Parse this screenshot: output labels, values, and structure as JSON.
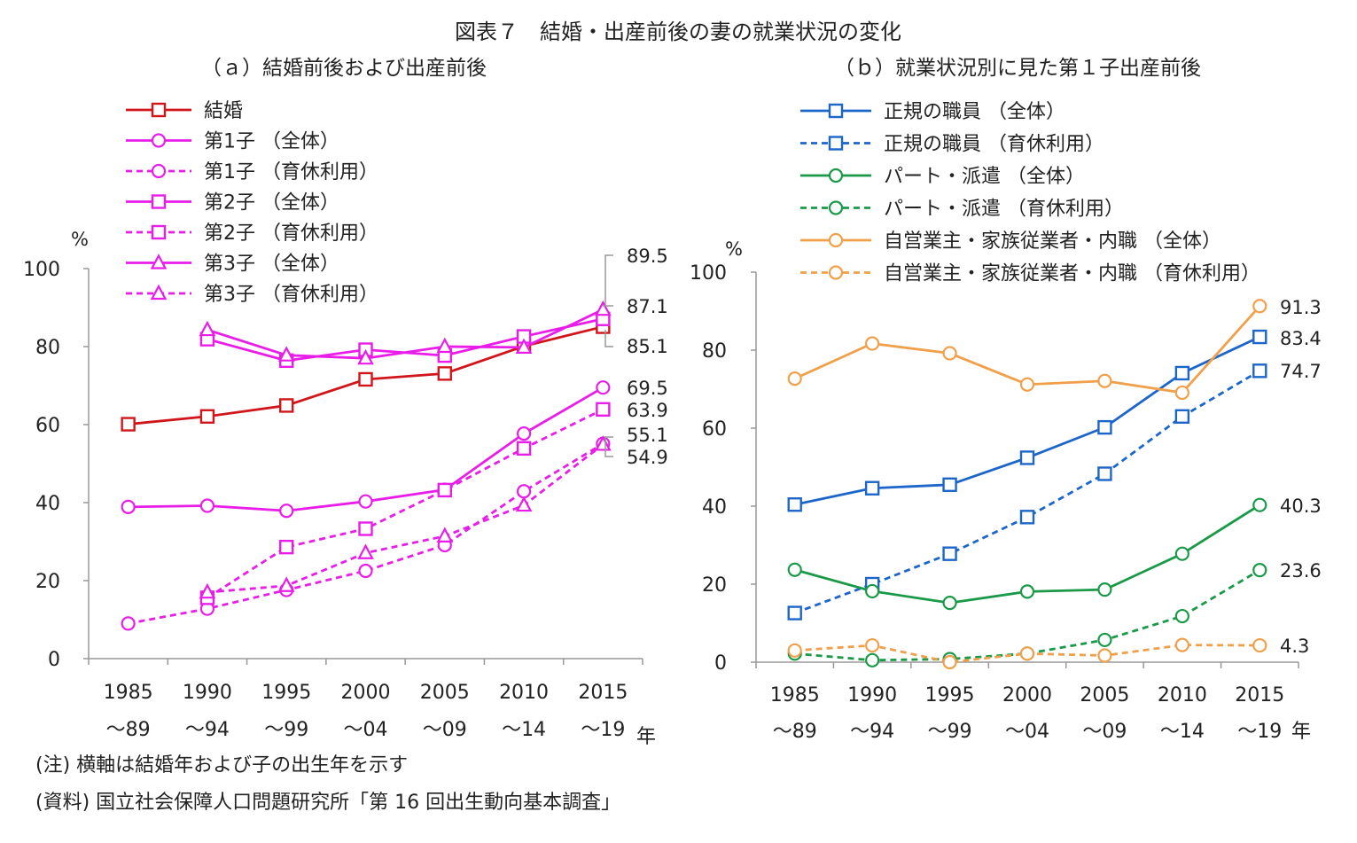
{
  "figure_title": "図表７　結婚・出産前後の妻の就業状況の変化",
  "notes": {
    "note": "(注) 横軸は結婚年および子の出生年を示す",
    "source": "(資料) 国立社会保障人口問題研究所「第 16 回出生動向基本調査」"
  },
  "colors": {
    "red": "#d0161b",
    "magenta": "#e81ee8",
    "blue": "#1d66c9",
    "green": "#1a9a48",
    "orange": "#f0a04a"
  },
  "chart_data": [
    {
      "type": "line",
      "title": "（ａ）結婚前後および出産前後",
      "ylabel": "%",
      "xunit": "年",
      "ylim": [
        0,
        100
      ],
      "yticks": [
        0,
        20,
        40,
        60,
        80,
        100
      ],
      "categories": [
        {
          "top": "1985",
          "bottom": "～89"
        },
        {
          "top": "1990",
          "bottom": "～94"
        },
        {
          "top": "1995",
          "bottom": "～99"
        },
        {
          "top": "2000",
          "bottom": "～04"
        },
        {
          "top": "2005",
          "bottom": "～09"
        },
        {
          "top": "2010",
          "bottom": "～14"
        },
        {
          "top": "2015",
          "bottom": "～19"
        }
      ],
      "series": [
        {
          "name": "結婚",
          "color": "#d0161b",
          "dash": false,
          "marker": "square",
          "values": [
            60.1,
            62.1,
            64.9,
            71.6,
            73.1,
            80.1,
            85.1
          ]
        },
        {
          "name": "第1子 （全体）",
          "color": "#e81ee8",
          "dash": false,
          "marker": "circle",
          "values": [
            38.9,
            39.2,
            37.9,
            40.3,
            43.3,
            57.7,
            69.5
          ]
        },
        {
          "name": "第1子 （育休利用）",
          "color": "#e81ee8",
          "dash": true,
          "marker": "circle",
          "values": [
            9.0,
            12.8,
            17.6,
            22.5,
            29.1,
            42.9,
            55.1
          ]
        },
        {
          "name": "第2子 （全体）",
          "color": "#e81ee8",
          "dash": false,
          "marker": "square",
          "values": [
            null,
            81.9,
            76.4,
            79.2,
            77.7,
            82.6,
            87.1
          ]
        },
        {
          "name": "第2子 （育休利用）",
          "color": "#e81ee8",
          "dash": true,
          "marker": "square",
          "values": [
            null,
            15.6,
            28.6,
            33.3,
            43.2,
            53.9,
            63.9
          ]
        },
        {
          "name": "第3子 （全体）",
          "color": "#e81ee8",
          "dash": false,
          "marker": "triangle",
          "values": [
            null,
            84.3,
            77.8,
            77.0,
            80.0,
            79.8,
            89.5
          ]
        },
        {
          "name": "第3子 （育休利用）",
          "color": "#e81ee8",
          "dash": true,
          "marker": "triangle",
          "values": [
            null,
            17.0,
            18.7,
            27.1,
            31.4,
            39.3,
            54.9
          ]
        }
      ],
      "annotations": [
        "89.5",
        "87.1",
        "85.1",
        "69.5",
        "63.9",
        "55.1",
        "54.9"
      ]
    },
    {
      "type": "line",
      "title": "（ｂ）就業状況別に見た第１子出産前後",
      "ylabel": "%",
      "xunit": "年",
      "ylim": [
        0,
        100
      ],
      "yticks": [
        0,
        20,
        40,
        60,
        80,
        100
      ],
      "categories": [
        {
          "top": "1985",
          "bottom": "～89"
        },
        {
          "top": "1990",
          "bottom": "～94"
        },
        {
          "top": "1995",
          "bottom": "～99"
        },
        {
          "top": "2000",
          "bottom": "～04"
        },
        {
          "top": "2005",
          "bottom": "～09"
        },
        {
          "top": "2010",
          "bottom": "～14"
        },
        {
          "top": "2015",
          "bottom": "～19"
        }
      ],
      "series": [
        {
          "name": "正規の職員 （全体）",
          "color": "#1d66c9",
          "dash": false,
          "marker": "square",
          "values": [
            40.4,
            44.6,
            45.5,
            52.4,
            60.2,
            74.1,
            83.4
          ]
        },
        {
          "name": "正規の職員 （育休利用）",
          "color": "#1d66c9",
          "dash": true,
          "marker": "square",
          "values": [
            12.6,
            20.0,
            27.8,
            37.2,
            48.3,
            63.0,
            74.7
          ]
        },
        {
          "name": "パート・派遣 （全体）",
          "color": "#1a9a48",
          "dash": false,
          "marker": "circle",
          "values": [
            23.7,
            18.2,
            15.2,
            18.1,
            18.6,
            27.8,
            40.3
          ]
        },
        {
          "name": "パート・派遣 （育休利用）",
          "color": "#1a9a48",
          "dash": true,
          "marker": "circle",
          "values": [
            2.2,
            0.5,
            0.8,
            2.2,
            5.7,
            11.8,
            23.6
          ]
        },
        {
          "name": "自営業主・家族従業者・内職 （全体）",
          "color": "#f0a04a",
          "dash": false,
          "marker": "circle",
          "values": [
            72.7,
            81.7,
            79.2,
            71.2,
            72.1,
            69.1,
            91.3
          ]
        },
        {
          "name": "自営業主・家族従業者・内職 （育休利用）",
          "color": "#f0a04a",
          "dash": true,
          "marker": "circle",
          "values": [
            3.0,
            4.3,
            0.0,
            2.2,
            1.7,
            4.4,
            4.3
          ]
        }
      ],
      "annotations": [
        "91.3",
        "83.4",
        "74.7",
        "40.3",
        "23.6",
        "4.3"
      ]
    }
  ]
}
